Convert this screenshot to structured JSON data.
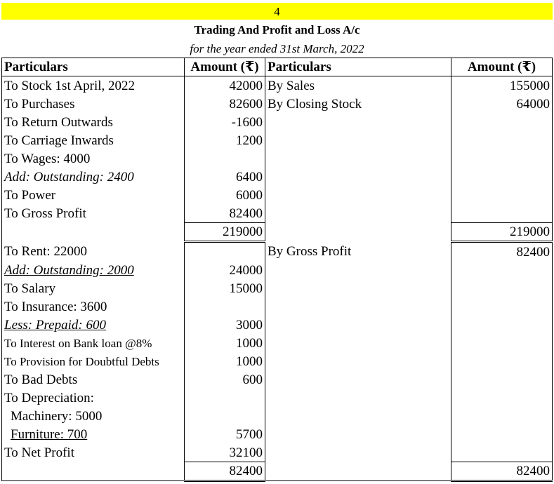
{
  "header": {
    "number": "4",
    "title": "Trading And Profit and Loss A/c",
    "subtitle": "for the year ended 31st March, 2022"
  },
  "columns": {
    "particulars_left": "Particulars",
    "amount_left": "Amount (₹)",
    "particulars_right": "Particulars",
    "amount_right": "Amount (₹)"
  },
  "trading": {
    "debit": [
      {
        "label": "To Stock 1st April, 2022",
        "amount": "42000"
      },
      {
        "label": "To Purchases",
        "amount": "82600"
      },
      {
        "label": "To Return Outwards",
        "amount": "-1600"
      },
      {
        "label": "To Carriage Inwards",
        "amount": "1200"
      },
      {
        "label": "To Wages: 4000",
        "amount": ""
      },
      {
        "label": "Add: Outstanding: 2400",
        "amount": "6400"
      },
      {
        "label": "To Power",
        "amount": "6000"
      },
      {
        "label": "To Gross Profit",
        "amount": "82400"
      }
    ],
    "credit": [
      {
        "label": "By Sales",
        "amount": "155000"
      },
      {
        "label": "By Closing Stock",
        "amount": "64000"
      }
    ],
    "total_left": "219000",
    "total_right": "219000"
  },
  "profit_loss": {
    "debit": [
      {
        "label": "To Rent: 22000",
        "amount": ""
      },
      {
        "label": "Add: Outstanding: 2000",
        "amount": "24000"
      },
      {
        "label": "To Salary",
        "amount": "15000"
      },
      {
        "label": "To Insurance: 3600",
        "amount": ""
      },
      {
        "label": "Less: Prepaid: 600",
        "amount": "3000"
      },
      {
        "label": "To Interest on Bank loan @8%",
        "amount": "1000"
      },
      {
        "label": "To Provision for Doubtful Debts",
        "amount": "1000"
      },
      {
        "label": "To Bad Debts",
        "amount": "600"
      },
      {
        "label": "To Depreciation:",
        "amount": ""
      },
      {
        "label": "Machinery: 5000",
        "amount": ""
      },
      {
        "label": "Furniture: 700",
        "amount": "5700"
      },
      {
        "label": "To Net Profit",
        "amount": "32100"
      }
    ],
    "credit": [
      {
        "label": "By Gross Profit",
        "amount": "82400"
      }
    ],
    "total_left": "82400",
    "total_right": "82400"
  }
}
